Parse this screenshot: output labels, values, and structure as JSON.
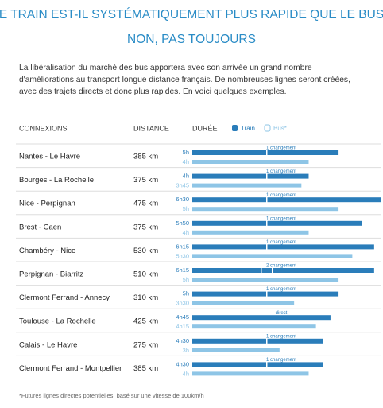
{
  "header": {
    "title": "LE TRAIN EST-IL SYSTÉMATIQUEMENT PLUS RAPIDE QUE LE BUS?",
    "subtitle": "NON, PAS TOUJOURS",
    "intro": "La libéralisation du marché des bus apportera avec son arrivée un grand nombre d'améliorations au transport longue distance français. De nombreuses lignes seront créées, avec des trajets directs et donc plus rapides. En voici quelques exemples."
  },
  "table": {
    "columns": [
      "CONNEXIONS",
      "DISTANCE",
      "DURÉE"
    ],
    "legend": {
      "train": "Train",
      "bus": "Bus*"
    },
    "train_color": "#2a7dba",
    "bus_color": "#8ec5e6",
    "rows": [
      {
        "name": "Nantes - Le Havre",
        "distance": {
          "value": 385,
          "label": "385 km"
        },
        "train": {
          "value": 5,
          "label": "5h"
        },
        "bus": {
          "value": 4,
          "label": "4h"
        },
        "note": "1 changement"
      },
      {
        "name": "Bourges - La Rochelle",
        "distance": {
          "value": 375,
          "label": "375 km"
        },
        "train": {
          "value": 4,
          "label": "4h"
        },
        "bus": {
          "value": 3.75,
          "label": "3h45"
        },
        "note": "1 changement"
      },
      {
        "name": "Nice - Perpignan",
        "distance": {
          "value": 475,
          "label": "475 km"
        },
        "train": {
          "value": 6.5,
          "label": "6h30"
        },
        "bus": {
          "value": 5,
          "label": "5h"
        },
        "note": "1 changement"
      },
      {
        "name": "Brest - Caen",
        "distance": {
          "value": 375,
          "label": "375 km"
        },
        "train": {
          "value": 5.833,
          "label": "5h50"
        },
        "bus": {
          "value": 4,
          "label": "4h"
        },
        "note": "1 changement"
      },
      {
        "name": "Chambéry - Nice",
        "distance": {
          "value": 530,
          "label": "530 km"
        },
        "train": {
          "value": 6.25,
          "label": "6h15"
        },
        "bus": {
          "value": 5.5,
          "label": "5h30"
        },
        "note": "1 changement"
      },
      {
        "name": "Perpignan - Biarritz",
        "distance": {
          "value": 510,
          "label": "510 km"
        },
        "train": {
          "value": 6.25,
          "label": "6h15"
        },
        "bus": {
          "value": 5,
          "label": "5h"
        },
        "note": "2 changement"
      },
      {
        "name": "Clermont Ferrand - Annecy",
        "distance": {
          "value": 310,
          "label": "310 km"
        },
        "train": {
          "value": 5,
          "label": "5h"
        },
        "bus": {
          "value": 3.5,
          "label": "3h30"
        },
        "note": "1 changement"
      },
      {
        "name": "Toulouse - La Rochelle",
        "distance": {
          "value": 425,
          "label": "425 km"
        },
        "train": {
          "value": 4.75,
          "label": "4h45"
        },
        "bus": {
          "value": 4.25,
          "label": "4h15"
        },
        "note": "direct"
      },
      {
        "name": "Calais - Le Havre",
        "distance": {
          "value": 275,
          "label": "275 km"
        },
        "train": {
          "value": 4.5,
          "label": "4h30"
        },
        "bus": {
          "value": 3,
          "label": "3h"
        },
        "note": "1 changement"
      },
      {
        "name": "Clermont Ferrand - Montpellier",
        "distance": {
          "value": 385,
          "label": "385 km"
        },
        "train": {
          "value": 4.5,
          "label": "4h30"
        },
        "bus": {
          "value": 4,
          "label": "4h"
        },
        "note": "1 changement"
      }
    ]
  },
  "footnote": "*Futures lignes directes potentielles; basé sur une vitesse de 100km/h"
}
